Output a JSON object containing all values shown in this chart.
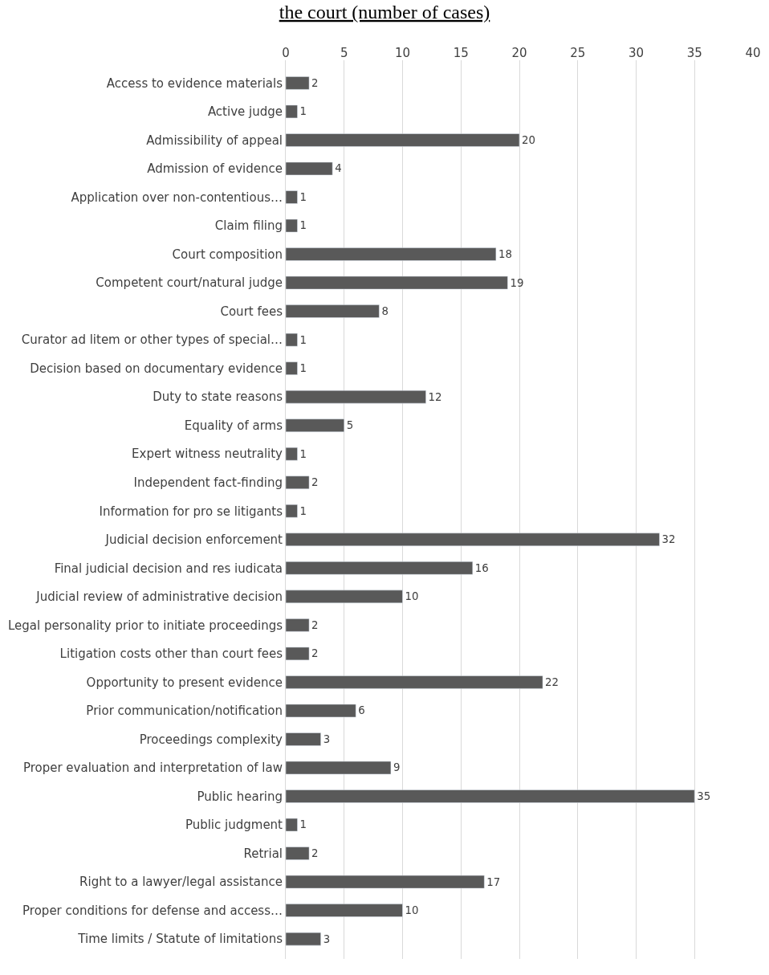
{
  "chart_data": {
    "type": "bar",
    "orientation": "horizontal",
    "title": "the court (number of cases)",
    "categories": [
      "Access to evidence materials",
      "Active judge",
      "Admissibility of appeal",
      "Admission of evidence",
      "Application over non-contentious…",
      "Claim filing",
      "Court composition",
      "Competent court/natural judge",
      "Court fees",
      "Curator ad litem or other types of special…",
      "Decision based on documentary evidence",
      "Duty to state reasons",
      "Equality of arms",
      "Expert witness neutrality",
      "Independent fact-finding",
      "Information for pro se litigants",
      "Judicial decision enforcement",
      "Final judicial decision and res iudicata",
      "Judicial review of administrative decision",
      "Legal personality prior to initiate proceedings",
      "Litigation costs other than court fees",
      "Opportunity to present evidence",
      "Prior communication/notification",
      "Proceedings complexity",
      "Proper evaluation and interpretation of law",
      "Public hearing",
      "Public judgment",
      "Retrial",
      "Right to a lawyer/legal assistance",
      "Proper conditions for defense and access…",
      "Time limits / Statute of limitations"
    ],
    "values": [
      2,
      1,
      20,
      4,
      1,
      1,
      18,
      19,
      8,
      1,
      1,
      12,
      5,
      1,
      2,
      1,
      32,
      16,
      10,
      2,
      2,
      22,
      6,
      3,
      9,
      35,
      1,
      2,
      17,
      10,
      3
    ],
    "color": "#595959",
    "xlim": [
      0,
      40
    ],
    "xticks": [
      0,
      5,
      10,
      15,
      20,
      25,
      30,
      35,
      40
    ],
    "grid": "x",
    "data_labels": true
  }
}
